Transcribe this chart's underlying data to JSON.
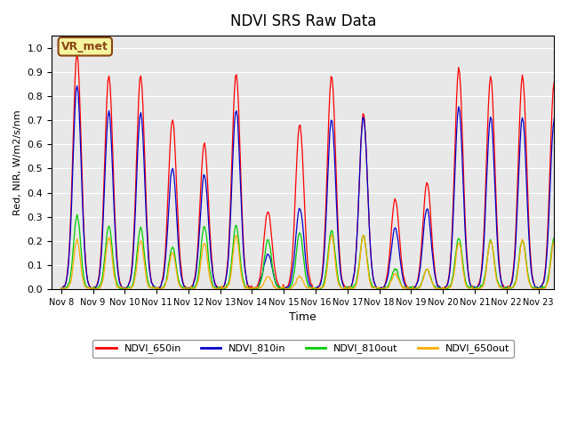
{
  "title": "NDVI SRS Raw Data",
  "ylabel": "Red, NIR, W/m2/s/nm",
  "xlabel": "Time",
  "ylim": [
    0.0,
    1.05
  ],
  "background_color": "#e8e8e8",
  "annotation_text": "VR_met",
  "annotation_color": "#8B4513",
  "annotation_bg": "#f5f5a0",
  "series_colors": {
    "NDVI_650in": "#ff0000",
    "NDVI_810in": "#0000cc",
    "NDVI_810out": "#00cc00",
    "NDVI_650out": "#ffaa00"
  },
  "xtick_labels": [
    "Nov 8",
    "Nov 9",
    "Nov 10",
    "Nov 11",
    "Nov 12",
    "Nov 13",
    "Nov 14",
    "Nov 15",
    "Nov 16",
    "Nov 17",
    "Nov 18",
    "Nov 19",
    "Nov 20",
    "Nov 21",
    "Nov 22",
    "Nov 23"
  ],
  "peaks_650in": [
    0.97,
    0.88,
    0.88,
    0.7,
    0.6,
    0.89,
    0.32,
    0.68,
    0.88,
    0.72,
    0.37,
    0.44,
    0.91,
    0.88,
    0.88,
    0.86
  ],
  "peaks_810in": [
    0.84,
    0.73,
    0.73,
    0.5,
    0.47,
    0.74,
    0.14,
    0.33,
    0.7,
    0.71,
    0.25,
    0.33,
    0.75,
    0.71,
    0.71,
    0.7
  ],
  "peaks_810out": [
    0.3,
    0.26,
    0.25,
    0.17,
    0.26,
    0.26,
    0.2,
    0.23,
    0.24,
    0.22,
    0.08,
    0.08,
    0.21,
    0.2,
    0.2,
    0.21
  ],
  "peaks_650out": [
    0.2,
    0.21,
    0.2,
    0.15,
    0.19,
    0.22,
    0.05,
    0.05,
    0.22,
    0.22,
    0.06,
    0.08,
    0.19,
    0.2,
    0.2,
    0.2
  ],
  "yticks": [
    0.0,
    0.1,
    0.2,
    0.3,
    0.4,
    0.5,
    0.6,
    0.7,
    0.8,
    0.9,
    1.0
  ]
}
